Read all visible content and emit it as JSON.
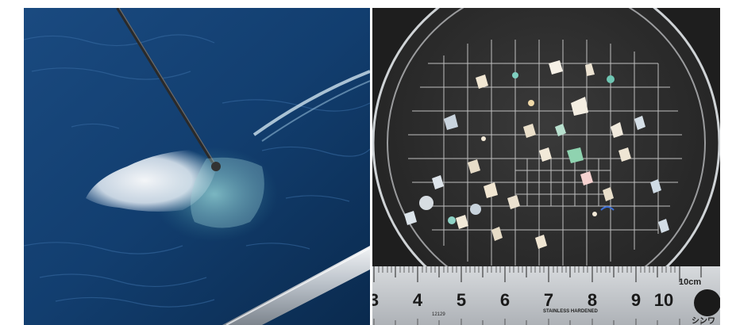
{
  "left_photo": {
    "subject": "plankton net sampling bag on ocean surface",
    "colors": {
      "sea_dark": "#0b2f57",
      "sea_mid": "#1d4f86",
      "net": "#dfe8f0"
    }
  },
  "right_photo": {
    "subject": "petri dish with microplastic fragments over grid",
    "ruler": {
      "numbers": [
        "3",
        "4",
        "5",
        "6",
        "7",
        "8",
        "9",
        "10"
      ],
      "unit_label": "10cm",
      "small_text_left": "12129",
      "small_text_mid": "STAINLESS HARDENED",
      "brand_text": "シンワ"
    },
    "colors": {
      "dish_bg": "#2b2a2a",
      "grid": "#d9d9d9",
      "ruler": "#c9ccd0"
    }
  }
}
